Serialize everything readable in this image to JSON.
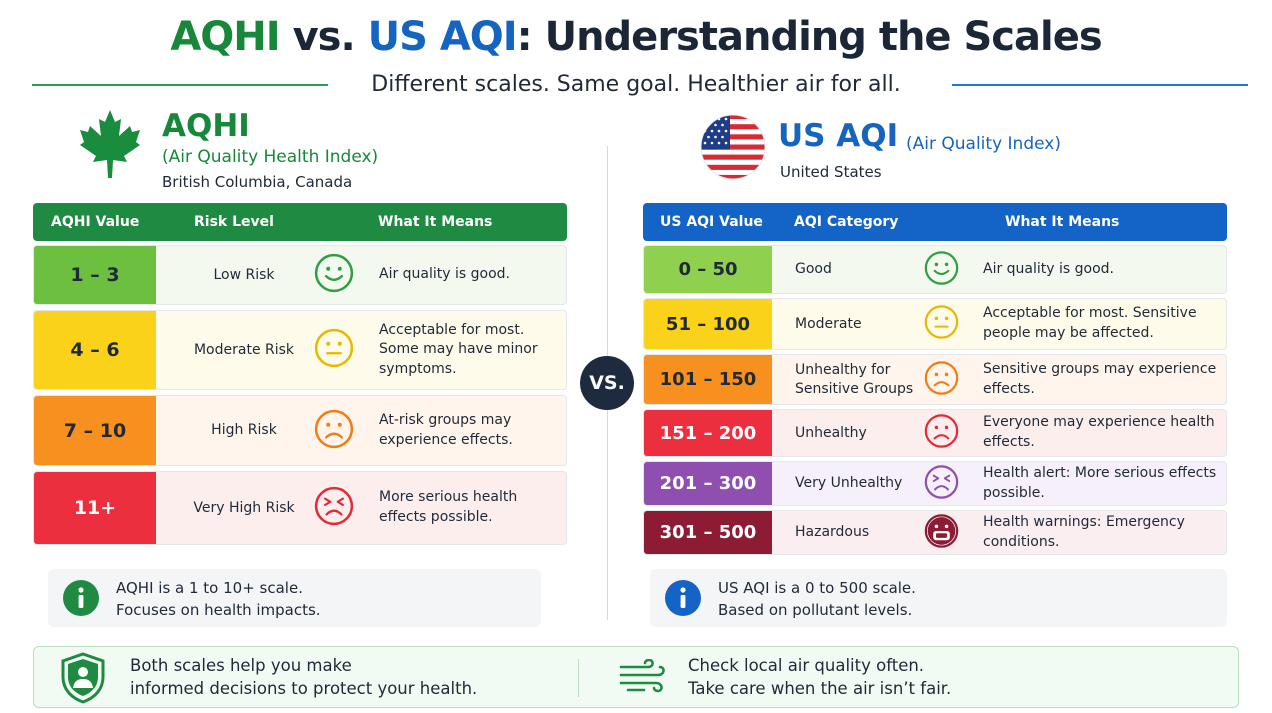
{
  "title": {
    "part1": "AQHI",
    "part2": " vs. ",
    "part3": "US AQI",
    "part4": ": Understanding the Scales"
  },
  "subtitle": "Different scales. Same goal. Healthier air for all.",
  "vs_label": "VS.",
  "aqhi": {
    "icon": "maple-leaf-icon",
    "name": "AQHI",
    "full_name": "(Air Quality Health Index)",
    "location": "British Columbia, Canada",
    "columns": [
      "AQHI Value",
      "Risk Level",
      "What It Means"
    ],
    "rows": [
      {
        "value": "1 – 3",
        "level": "Low Risk",
        "meaning": "Air quality is good.",
        "color": "#6cbf3f",
        "tint": "#f4f9ef",
        "face": "smile",
        "face_color": "#2f9e44"
      },
      {
        "value": "4 – 6",
        "level": "Moderate Risk",
        "meaning": "Acceptable for most. Some may have minor symptoms.",
        "color": "#fbd21a",
        "tint": "#fffbea",
        "face": "neutral",
        "face_color": "#e6b800"
      },
      {
        "value": "7 – 10",
        "level": "High Risk",
        "meaning": "At-risk groups may experience effects.",
        "color": "#f7901e",
        "tint": "#fff5ec",
        "face": "frown",
        "face_color": "#ef7d16"
      },
      {
        "value": "11+",
        "level": "Very High Risk",
        "meaning": "More serious health effects possible.",
        "color": "#ec2f3f",
        "tint": "#fdeeee",
        "face": "distressed",
        "face_color": "#e12b36"
      }
    ],
    "info_line1": "AQHI is a 1 to 10+ scale.",
    "info_line2": "Focuses on health impacts.",
    "info_icon": "info-icon",
    "accent": "#17873a",
    "header_color": "#1f8a41"
  },
  "usaqi": {
    "icon": "us-flag-icon",
    "name": "US AQI",
    "full_name": "(Air Quality Index)",
    "location": "United States",
    "columns": [
      "US AQI Value",
      "AQI Category",
      "What It Means"
    ],
    "rows": [
      {
        "value": "0 – 50",
        "level": "Good",
        "meaning": "Air quality is good.",
        "color": "#8fd14f",
        "tint": "#f4f9ef",
        "face": "smile",
        "face_color": "#2f9e44"
      },
      {
        "value": "51 – 100",
        "level": "Moderate",
        "meaning": "Acceptable for most. Sensitive people may be affected.",
        "color": "#fbd21a",
        "tint": "#fffbea",
        "face": "neutral",
        "face_color": "#e6b800"
      },
      {
        "value": "101 – 150",
        "level": "Unhealthy for Sensitive Groups",
        "meaning": "Sensitive groups may experience effects.",
        "color": "#f7901e",
        "tint": "#fff5ec",
        "face": "frown",
        "face_color": "#ef7d16"
      },
      {
        "value": "151 – 200",
        "level": "Unhealthy",
        "meaning": "Everyone may experience health effects.",
        "color": "#ec2f3f",
        "tint": "#fdeeee",
        "face": "frown",
        "face_color": "#e12b36"
      },
      {
        "value": "201 – 300",
        "level": "Very Unhealthy",
        "meaning": "Health alert: More serious effects possible.",
        "color": "#8e4fb0",
        "tint": "#f6f0fa",
        "face": "distressed",
        "face_color": "#8e4fb0"
      },
      {
        "value": "301 – 500",
        "level": "Hazardous",
        "meaning": "Health warnings: Emergency conditions.",
        "color": "#8e1b34",
        "tint": "#fbeef1",
        "face": "mask",
        "face_color": "#8e1b34"
      }
    ],
    "info_line1": "US AQI is a 0 to 500 scale.",
    "info_line2": "Based on pollutant levels.",
    "info_icon": "info-icon",
    "accent": "#1565c0",
    "header_color": "#1463c6"
  },
  "footer": {
    "left_icon": "shield-person-icon",
    "left_line1": "Both scales help you make",
    "left_line2": "informed decisions to protect your health.",
    "right_icon": "wind-icon",
    "right_line1": "Check local air quality often.",
    "right_line2": "Take care when the air isn’t fair."
  }
}
